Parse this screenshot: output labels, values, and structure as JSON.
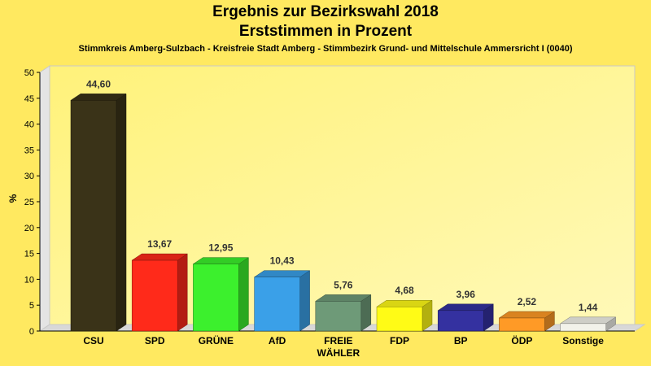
{
  "chart_data": {
    "type": "bar",
    "title": "Ergebnis zur Bezirkswahl 2018",
    "subtitle": "Erststimmen in Prozent",
    "description": "Stimmkreis Amberg-Sulzbach - Kreisfreie Stadt Amberg - Stimmbezirk Grund- und Mittelschule Ammersricht I (0040)",
    "ylabel": "%",
    "xlabel": "",
    "ylim": [
      0,
      50
    ],
    "yticks": [
      0,
      5,
      10,
      15,
      20,
      25,
      30,
      35,
      40,
      45,
      50
    ],
    "grid": false,
    "bars": [
      {
        "label": "CSU",
        "value": 44.6,
        "value_label": "44,60",
        "color": "#3a3318"
      },
      {
        "label": "SPD",
        "value": 13.67,
        "value_label": "13,67",
        "color": "#ff2a1a"
      },
      {
        "label": "GRÜNE",
        "value": 12.95,
        "value_label": "12,95",
        "color": "#3cf02d"
      },
      {
        "label": "AfD",
        "value": 10.43,
        "value_label": "10,43",
        "color": "#3aa0e8"
      },
      {
        "label": "FREIE\nWÄHLER",
        "value": 5.76,
        "value_label": "5,76",
        "color": "#6e9a78"
      },
      {
        "label": "FDP",
        "value": 4.68,
        "value_label": "4,68",
        "color": "#fffb16"
      },
      {
        "label": "BP",
        "value": 3.96,
        "value_label": "3,96",
        "color": "#3431a0"
      },
      {
        "label": "ÖDP",
        "value": 2.52,
        "value_label": "2,52",
        "color": "#ff9a26"
      },
      {
        "label": "Sonstige",
        "value": 1.44,
        "value_label": "1,44",
        "color": "#f2f2ea"
      }
    ]
  }
}
